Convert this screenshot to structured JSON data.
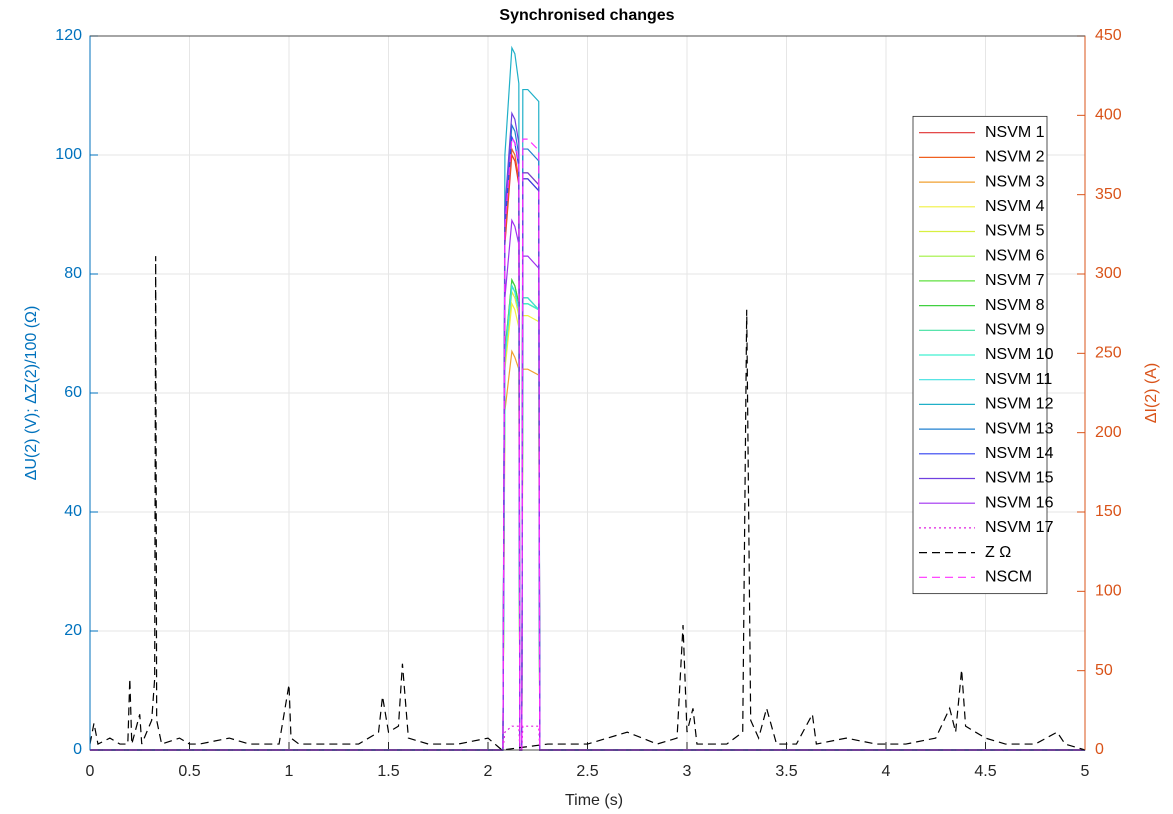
{
  "chart_data": {
    "type": "line",
    "title": "Synchronised changes",
    "xlabel": "Time (s)",
    "ylabel": "ΔU(2) (V); ΔZ(2)/100 (Ω)",
    "y2label": "ΔI(2) (A)",
    "xlim": [
      0,
      5
    ],
    "xticks": [
      0,
      0.5,
      1,
      1.5,
      2,
      2.5,
      3,
      3.5,
      4,
      4.5,
      5
    ],
    "ylim": [
      0,
      120
    ],
    "yticks": [
      0,
      20,
      40,
      60,
      80,
      100,
      120
    ],
    "y2lim": [
      0,
      450
    ],
    "y2ticks": [
      0,
      50,
      100,
      150,
      200,
      250,
      300,
      350,
      400,
      450
    ],
    "grid": true,
    "legend": "right",
    "series": [
      {
        "name": "NSVM 1",
        "color": "#e03030",
        "linestyle": "solid",
        "x": [
          0,
          2.075,
          2.085,
          2.12,
          2.135,
          2.155,
          2.16,
          2.17,
          2.175,
          2.2,
          2.255,
          2.26,
          5
        ],
        "values": [
          0,
          0,
          85,
          100,
          99,
          95,
          0,
          0,
          96,
          96,
          94,
          0,
          0
        ]
      },
      {
        "name": "NSVM 2",
        "color": "#f06020",
        "linestyle": "solid",
        "x": [
          0,
          2.075,
          2.085,
          2.12,
          2.135,
          2.155,
          2.16,
          2.17,
          2.175,
          2.2,
          2.255,
          2.26,
          5
        ],
        "values": [
          0,
          0,
          86,
          101,
          100,
          96,
          0,
          0,
          97,
          97,
          95,
          0,
          0
        ]
      },
      {
        "name": "NSVM 3",
        "color": "#f0a030",
        "linestyle": "solid",
        "x": [
          0,
          2.075,
          2.085,
          2.12,
          2.135,
          2.155,
          2.16,
          2.17,
          2.175,
          2.2,
          2.255,
          2.26,
          5
        ],
        "values": [
          0,
          0,
          57,
          67,
          66,
          64,
          0,
          0,
          64,
          64,
          63,
          0,
          0
        ]
      },
      {
        "name": "NSVM 4",
        "color": "#f0f040",
        "linestyle": "solid",
        "x": [
          0,
          2.075,
          2.085,
          2.12,
          2.135,
          2.155,
          2.16,
          2.17,
          2.175,
          2.2,
          2.255,
          2.26,
          5
        ],
        "values": [
          0,
          0,
          64,
          75,
          74,
          71,
          0,
          0,
          73,
          73,
          72,
          0,
          0
        ]
      },
      {
        "name": "NSVM 5",
        "color": "#d8f040",
        "linestyle": "solid",
        "x": [
          0,
          2.075,
          2.085,
          2.12,
          2.135,
          2.155,
          2.16,
          2.17,
          2.175,
          2.2,
          2.255,
          2.26,
          5
        ],
        "values": [
          0,
          0,
          65,
          77,
          76,
          73,
          0,
          0,
          75,
          75,
          74,
          0,
          0
        ]
      },
      {
        "name": "NSVM 6",
        "color": "#a0f040",
        "linestyle": "solid",
        "x": [
          0,
          2.075,
          2.085,
          2.12,
          2.135,
          2.155,
          2.16,
          2.17,
          2.175,
          2.2,
          2.255,
          2.26,
          5
        ],
        "values": [
          0,
          0,
          66,
          78,
          77,
          74,
          0,
          0,
          76,
          76,
          74,
          0,
          0
        ]
      },
      {
        "name": "NSVM 7",
        "color": "#60e040",
        "linestyle": "solid",
        "x": [
          0,
          2.075,
          2.085,
          2.12,
          2.135,
          2.155,
          2.16,
          2.17,
          2.175,
          2.2,
          2.255,
          2.26,
          5
        ],
        "values": [
          0,
          0,
          67,
          79,
          78,
          75,
          0,
          0,
          75,
          75,
          74,
          0,
          0
        ]
      },
      {
        "name": "NSVM 8",
        "color": "#40d040",
        "linestyle": "solid",
        "x": [
          0,
          2.075,
          2.085,
          2.12,
          2.135,
          2.155,
          2.16,
          2.17,
          2.175,
          2.2,
          2.255,
          2.26,
          5
        ],
        "values": [
          0,
          0,
          67,
          79,
          78,
          75,
          0,
          0,
          76,
          76,
          74,
          0,
          0
        ]
      },
      {
        "name": "NSVM 9",
        "color": "#40e0a0",
        "linestyle": "solid",
        "x": [
          0,
          2.075,
          2.085,
          2.12,
          2.135,
          2.155,
          2.16,
          2.17,
          2.175,
          2.2,
          2.255,
          2.26,
          5
        ],
        "values": [
          0,
          0,
          66,
          78,
          77,
          74,
          0,
          0,
          75,
          75,
          74,
          0,
          0
        ]
      },
      {
        "name": "NSVM 10",
        "color": "#40f0d0",
        "linestyle": "solid",
        "x": [
          0,
          2.075,
          2.085,
          2.12,
          2.135,
          2.155,
          2.16,
          2.17,
          2.175,
          2.2,
          2.255,
          2.26,
          5
        ],
        "values": [
          0,
          0,
          66,
          78,
          77,
          74,
          0,
          0,
          75,
          75,
          74,
          0,
          0
        ]
      },
      {
        "name": "NSVM 11",
        "color": "#40e0e0",
        "linestyle": "solid",
        "x": [
          0,
          2.075,
          2.085,
          2.12,
          2.135,
          2.155,
          2.16,
          2.17,
          2.175,
          2.2,
          2.255,
          2.26,
          5
        ],
        "values": [
          0,
          0,
          66,
          78,
          77,
          74,
          0,
          0,
          76,
          76,
          74,
          0,
          0
        ]
      },
      {
        "name": "NSVM 12",
        "color": "#20b0c8",
        "linestyle": "solid",
        "x": [
          0,
          2.075,
          2.085,
          2.12,
          2.135,
          2.155,
          2.16,
          2.17,
          2.175,
          2.2,
          2.255,
          2.26,
          5
        ],
        "values": [
          0,
          0,
          100,
          118,
          117,
          112,
          0,
          0,
          111,
          111,
          109,
          0,
          0
        ]
      },
      {
        "name": "NSVM 13",
        "color": "#2080d0",
        "linestyle": "solid",
        "x": [
          0,
          2.075,
          2.085,
          2.12,
          2.135,
          2.155,
          2.16,
          2.17,
          2.175,
          2.2,
          2.255,
          2.26,
          5
        ],
        "values": [
          0,
          0,
          89,
          105,
          104,
          100,
          0,
          0,
          101,
          101,
          99,
          0,
          0
        ]
      },
      {
        "name": "NSVM 14",
        "color": "#3040f0",
        "linestyle": "solid",
        "x": [
          0,
          2.075,
          2.085,
          2.12,
          2.135,
          2.155,
          2.16,
          2.17,
          2.175,
          2.2,
          2.255,
          2.26,
          5
        ],
        "values": [
          0,
          0,
          88,
          103,
          102,
          98,
          0,
          0,
          96,
          96,
          94,
          0,
          0
        ]
      },
      {
        "name": "NSVM 15",
        "color": "#7040e0",
        "linestyle": "solid",
        "x": [
          0,
          2.075,
          2.085,
          2.12,
          2.135,
          2.155,
          2.16,
          2.17,
          2.175,
          2.2,
          2.255,
          2.26,
          5
        ],
        "values": [
          0,
          0,
          91,
          107,
          106,
          102,
          0,
          0,
          97,
          97,
          95,
          0,
          0
        ]
      },
      {
        "name": "NSVM 16",
        "color": "#a030f0",
        "linestyle": "solid",
        "x": [
          0,
          2.075,
          2.085,
          2.12,
          2.135,
          2.155,
          2.16,
          2.17,
          2.175,
          2.2,
          2.255,
          2.26,
          5
        ],
        "values": [
          0,
          0,
          76,
          89,
          88,
          85,
          0,
          0,
          83,
          83,
          81,
          0,
          0
        ]
      },
      {
        "name": "NSVM 17",
        "color": "#e020e0",
        "linestyle": "dotted",
        "x": [
          0,
          2.075,
          2.085,
          2.12,
          2.135,
          2.155,
          2.16,
          2.17,
          2.175,
          2.2,
          2.255,
          2.26,
          5
        ],
        "values": [
          0,
          0,
          3,
          4,
          4,
          4,
          0,
          0,
          4,
          4,
          4,
          0,
          0
        ]
      },
      {
        "name": "Z Ω",
        "color": "#000000",
        "linestyle": "dashed",
        "x": [
          0,
          0.02,
          0.04,
          0.1,
          0.15,
          0.19,
          0.2,
          0.21,
          0.25,
          0.26,
          0.31,
          0.325,
          0.33,
          0.335,
          0.36,
          0.45,
          0.5,
          0.55,
          0.7,
          0.8,
          0.95,
          1.0,
          1.01,
          1.05,
          1.2,
          1.35,
          1.45,
          1.47,
          1.5,
          1.55,
          1.57,
          1.6,
          1.7,
          1.85,
          2.0,
          2.07,
          2.3,
          2.5,
          2.7,
          2.85,
          2.95,
          2.98,
          3.0,
          3.03,
          3.05,
          3.2,
          3.28,
          3.3,
          3.32,
          3.36,
          3.4,
          3.45,
          3.55,
          3.63,
          3.65,
          3.8,
          3.95,
          4.1,
          4.25,
          4.32,
          4.35,
          4.38,
          4.4,
          4.5,
          4.6,
          4.75,
          4.86,
          4.9,
          5
        ],
        "values": [
          1,
          4.5,
          1,
          2,
          1,
          1,
          12,
          1,
          6,
          1,
          5,
          12,
          83,
          5,
          1,
          2,
          1,
          1,
          2,
          1,
          1,
          11,
          2,
          1,
          1,
          1,
          3,
          9,
          3,
          4,
          14.5,
          2,
          1,
          1,
          2,
          0,
          1,
          1,
          3,
          1,
          2,
          21,
          3,
          7,
          1,
          1,
          3,
          74,
          5,
          2,
          7,
          1,
          1,
          6,
          1,
          2,
          1,
          1,
          2,
          7,
          3,
          13.5,
          4,
          2,
          1,
          1,
          3,
          1,
          0
        ]
      },
      {
        "name": "NSCM",
        "color": "#ff30ff",
        "linestyle": "dashed",
        "axis": "y2",
        "x": [
          0,
          2.075,
          2.085,
          2.12,
          2.135,
          2.155,
          2.16,
          2.17,
          2.175,
          2.2,
          2.255,
          2.26,
          5
        ],
        "values": [
          0,
          0,
          330,
          386,
          383,
          370,
          0,
          0,
          385,
          385,
          378,
          0,
          0
        ]
      }
    ]
  }
}
